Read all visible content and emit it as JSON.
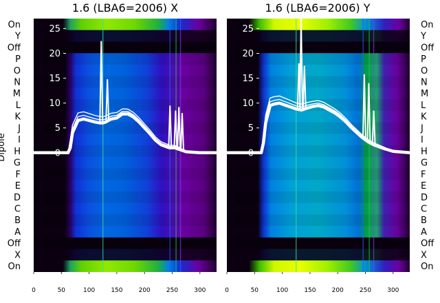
{
  "chart_data": [
    {
      "type": "heatmap",
      "title": "1.6 (LBA6=2006) X",
      "ylabel": "Dipole",
      "dipole_labels": [
        "On",
        "Y",
        "Off",
        "P",
        "O",
        "N",
        "M",
        "L",
        "K",
        "J",
        "I",
        "H",
        "G",
        "F",
        "E",
        "D",
        "C",
        "B",
        "A",
        "Off",
        "X",
        "On"
      ],
      "x_ticks": [
        0,
        50,
        100,
        150,
        200,
        250,
        300
      ],
      "xlim": [
        0,
        330
      ],
      "y_ticks": [
        0,
        5,
        10,
        15,
        20,
        25
      ],
      "ylim": [
        -24,
        27
      ],
      "colormap": [
        "#000000",
        "#3b0050",
        "#6a00a0",
        "#1020d0",
        "#0060e0",
        "#00a0d0",
        "#00b060",
        "#40d000",
        "#c0f000"
      ],
      "series": [
        {
          "name": "",
          "x": [
            0,
            55,
            62,
            66,
            70,
            80,
            90,
            100,
            110,
            120,
            125,
            130,
            135,
            140,
            150,
            160,
            170,
            180,
            190,
            200,
            210,
            220,
            230,
            240,
            245,
            250,
            255,
            260,
            265,
            270,
            275,
            300,
            330
          ],
          "y": [
            0,
            0,
            0,
            1,
            4,
            6.5,
            6.8,
            6.5,
            6.2,
            6,
            6,
            6.2,
            6.5,
            6.8,
            7,
            7.8,
            7.8,
            7.2,
            6.2,
            5,
            3.8,
            2.5,
            1.6,
            1.2,
            1,
            1,
            1,
            0.8,
            0.6,
            0.4,
            0.2,
            0,
            0
          ]
        }
      ],
      "spikes": [
        {
          "x": 122,
          "y": 22.5
        },
        {
          "x": 133,
          "y": 14.8
        },
        {
          "x": 246,
          "y": 9.5
        },
        {
          "x": 256,
          "y": 8.5
        },
        {
          "x": 262,
          "y": 9.2
        },
        {
          "x": 268,
          "y": 8.0
        }
      ]
    },
    {
      "type": "heatmap",
      "title": "1.6 (LBA6=2006) Y",
      "ylabel": "",
      "dipole_labels": [
        "On",
        "Y",
        "Off",
        "P",
        "O",
        "N",
        "M",
        "L",
        "K",
        "J",
        "I",
        "H",
        "G",
        "F",
        "E",
        "D",
        "C",
        "B",
        "A",
        "Off",
        "X",
        "On"
      ],
      "x_ticks": [
        0,
        50,
        100,
        150,
        200,
        250,
        300
      ],
      "xlim": [
        0,
        330
      ],
      "y_ticks": [
        0,
        5,
        10,
        15,
        20,
        25
      ],
      "ylim": [
        -24,
        27
      ],
      "colormap": [
        "#000000",
        "#3b0050",
        "#6a00a0",
        "#1020d0",
        "#0060e0",
        "#00a0d0",
        "#00b060",
        "#40d000",
        "#c0f000"
      ],
      "series": [
        {
          "name": "",
          "x": [
            0,
            55,
            62,
            66,
            70,
            78,
            85,
            95,
            105,
            115,
            125,
            135,
            145,
            155,
            165,
            175,
            185,
            195,
            205,
            215,
            225,
            235,
            245,
            255,
            265,
            275,
            285,
            300,
            330
          ],
          "y": [
            0,
            0,
            0,
            2,
            6,
            9.5,
            9.8,
            10,
            9.6,
            9.2,
            8.8,
            8.6,
            9,
            9.3,
            9.5,
            9.2,
            8.6,
            8,
            7.2,
            6.2,
            5,
            4,
            3,
            2.2,
            1.6,
            1.2,
            0.8,
            0.3,
            0
          ]
        }
      ],
      "spikes": [
        {
          "x": 130,
          "y": 18.0
        },
        {
          "x": 134,
          "y": 27.0
        },
        {
          "x": 140,
          "y": 17.5
        },
        {
          "x": 248,
          "y": 15.8
        },
        {
          "x": 256,
          "y": 14.0
        },
        {
          "x": 265,
          "y": 8.5
        }
      ]
    }
  ]
}
